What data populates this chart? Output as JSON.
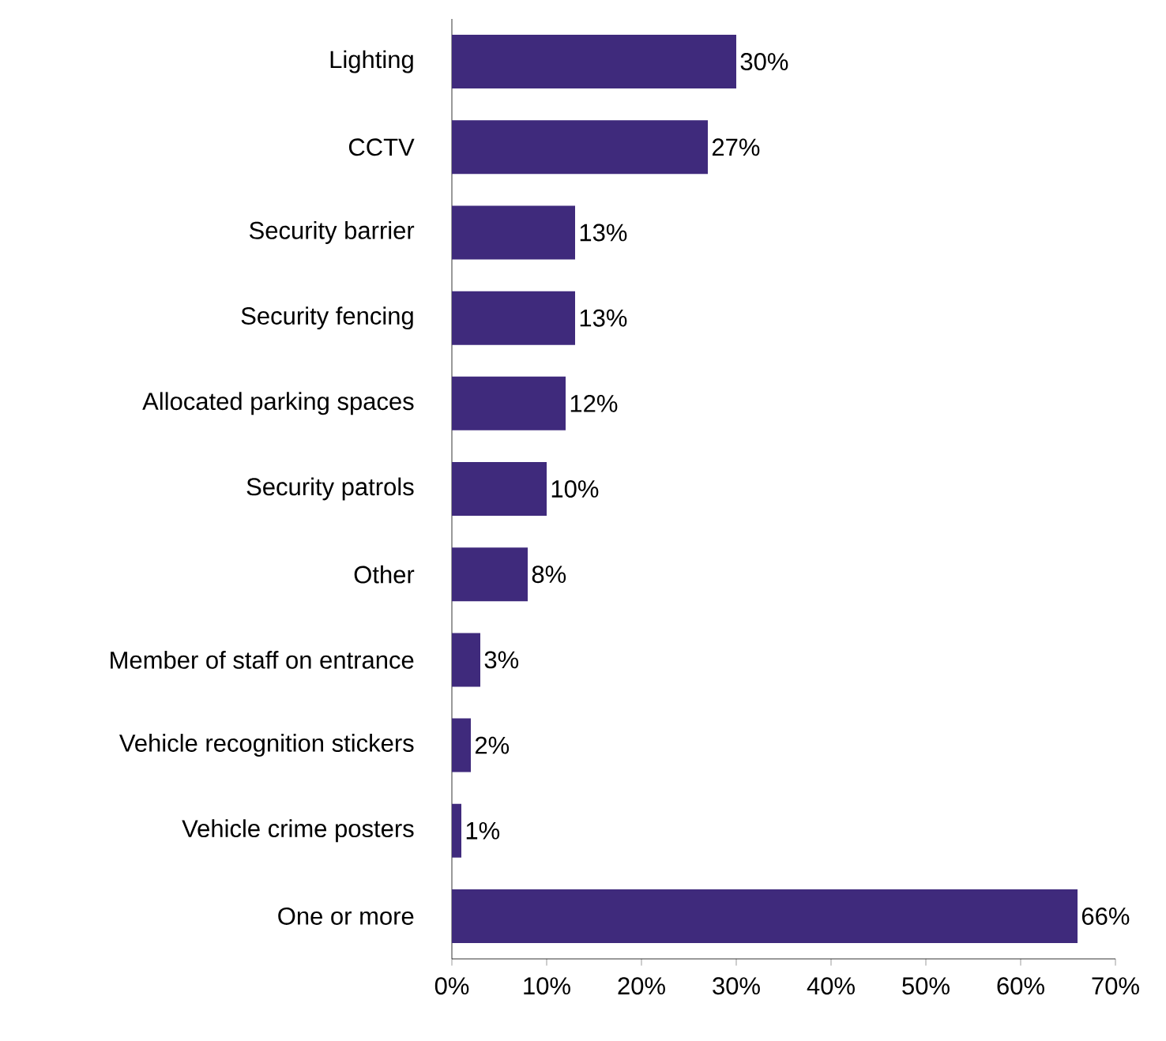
{
  "chart_data": {
    "type": "bar",
    "orientation": "horizontal",
    "categories": [
      "Lighting",
      "CCTV",
      "Security barrier",
      "Security fencing",
      "Allocated parking spaces",
      "Security patrols",
      "Other",
      "Member of staff on entrance",
      "Vehicle recognition stickers",
      "Vehicle crime posters",
      "One or more"
    ],
    "values": [
      30,
      27,
      13,
      13,
      12,
      10,
      8,
      3,
      2,
      1,
      66
    ],
    "value_labels": [
      "30%",
      "27%",
      "13%",
      "13%",
      "12%",
      "10%",
      "8%",
      "3%",
      "2%",
      "1%",
      "66%"
    ],
    "color": "#3f2a7c",
    "xlim": [
      0,
      70
    ],
    "xticks": [
      {
        "value": 0,
        "label": "0%"
      },
      {
        "value": 10,
        "label": "10%"
      },
      {
        "value": 20,
        "label": "20%"
      },
      {
        "value": 30,
        "label": "30%"
      },
      {
        "value": 40,
        "label": "40%"
      },
      {
        "value": 50,
        "label": "50%"
      },
      {
        "value": 60,
        "label": "60%"
      },
      {
        "value": 70,
        "label": "70%"
      }
    ],
    "grid": false
  }
}
